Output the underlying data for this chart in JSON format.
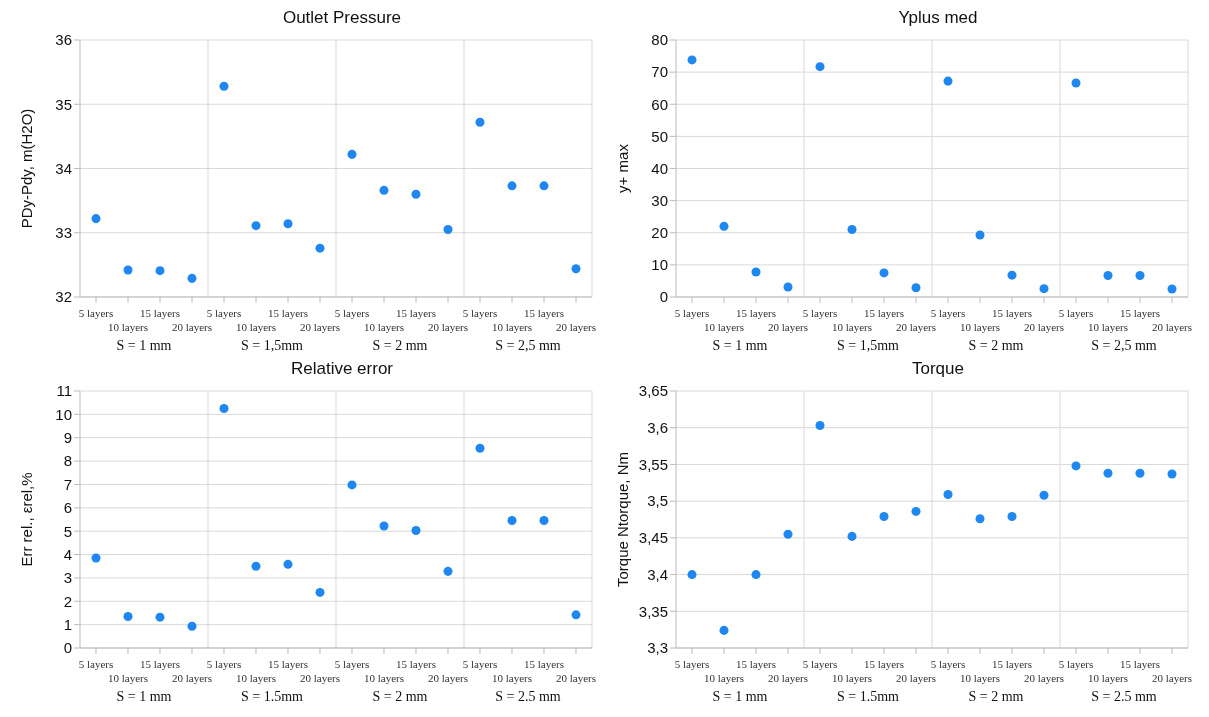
{
  "chart_data": [
    {
      "type": "scatter",
      "title": "Outlet Pressure",
      "ylabel": "PDy-Pdy, m(H2O)",
      "categories": [
        "5 layers",
        "10 layers",
        "15 layers",
        "20 layers",
        "5 layers",
        "10 layers",
        "15 layers",
        "20 layers",
        "5 layers",
        "10 layers",
        "15 layers",
        "20 layers",
        "5 layers",
        "10 layers",
        "15 layers",
        "20 layers"
      ],
      "values": [
        33.22,
        32.42,
        32.41,
        32.29,
        35.28,
        33.11,
        33.14,
        32.76,
        34.22,
        33.66,
        33.6,
        33.05,
        34.72,
        33.73,
        33.73,
        32.44
      ],
      "color": "#1e88f0",
      "marker": "circle",
      "ylim": [
        32,
        36
      ],
      "yticks": [
        32,
        33,
        34,
        35,
        36
      ],
      "grid": true,
      "annotations": [
        "S = 1 mm",
        "S = 1,5mm",
        "S = 2 mm",
        "S = 2,5 mm"
      ]
    },
    {
      "type": "scatter",
      "title": "Yplus med",
      "ylabel": "y+ max",
      "categories": [
        "5 layers",
        "10 layers",
        "15 layers",
        "20 layers",
        "5 layers",
        "10 layers",
        "15 layers",
        "20 layers",
        "5 layers",
        "10 layers",
        "15 layers",
        "20 layers",
        "5 layers",
        "10 layers",
        "15 layers",
        "20 layers"
      ],
      "values": [
        73.8,
        22,
        7.8,
        3.1,
        71.7,
        21,
        7.5,
        2.9,
        67.2,
        19.3,
        6.8,
        2.6,
        66.6,
        6.7,
        6.7,
        2.5
      ],
      "color": "#1e88f0",
      "marker": "circle",
      "ylim": [
        0,
        80
      ],
      "yticks": [
        0,
        10,
        20,
        30,
        40,
        50,
        60,
        70,
        80
      ],
      "grid": true,
      "annotations": [
        "S = 1 mm",
        "S = 1,5mm",
        "S = 2 mm",
        "S = 2,5 mm"
      ]
    },
    {
      "type": "scatter",
      "title": "Relative error",
      "ylabel": "Err rel., εrel,%",
      "categories": [
        "5 layers",
        "10 layers",
        "15 layers",
        "20 layers",
        "5 layers",
        "10 layers",
        "15 layers",
        "20 layers",
        "5 layers",
        "10 layers",
        "15 layers",
        "20 layers",
        "5 layers",
        "10 layers",
        "15 layers",
        "20 layers"
      ],
      "values": [
        3.85,
        1.35,
        1.32,
        0.93,
        10.25,
        3.5,
        3.58,
        2.38,
        6.98,
        5.22,
        5.03,
        3.28,
        8.55,
        5.46,
        5.46,
        1.42
      ],
      "color": "#1e88f0",
      "marker": "circle",
      "ylim": [
        0,
        11
      ],
      "yticks": [
        0,
        1,
        2,
        3,
        4,
        5,
        6,
        7,
        8,
        9,
        10,
        11
      ],
      "grid": true,
      "annotations": [
        "S = 1 mm",
        "S = 1.5mm",
        "S = 2 mm",
        "S = 2.5 mm"
      ]
    },
    {
      "type": "scatter",
      "title": "Torque",
      "ylabel": "Torque Ntorque, Nm",
      "categories": [
        "5 layers",
        "10 layers",
        "15 layers",
        "20 layers",
        "5 layers",
        "10 layers",
        "15 layers",
        "20 layers",
        "5 layers",
        "10 layers",
        "15 layers",
        "20 layers",
        "5 layers",
        "10 layers",
        "15 layers",
        "20 layers"
      ],
      "values": [
        3.4,
        3.324,
        3.4,
        3.455,
        3.603,
        3.452,
        3.479,
        3.486,
        3.509,
        3.476,
        3.479,
        3.508,
        3.548,
        3.538,
        3.538,
        3.537
      ],
      "color": "#1e88f0",
      "marker": "circle",
      "ylim": [
        3.3,
        3.65
      ],
      "yticks": [
        {
          "value": 3.3,
          "label": "3,3"
        },
        {
          "value": 3.35,
          "label": "3,35"
        },
        {
          "value": 3.4,
          "label": "3,4"
        },
        {
          "value": 3.45,
          "label": "3,45"
        },
        {
          "value": 3.5,
          "label": "3,5"
        },
        {
          "value": 3.55,
          "label": "3,55"
        },
        {
          "value": 3.6,
          "label": "3,6"
        },
        {
          "value": 3.65,
          "label": "3,65"
        }
      ],
      "grid": true,
      "annotations": [
        "S = 1 mm",
        "S = 1.5mm",
        "S = 2 mm",
        "S = 2.5 mm"
      ]
    }
  ]
}
